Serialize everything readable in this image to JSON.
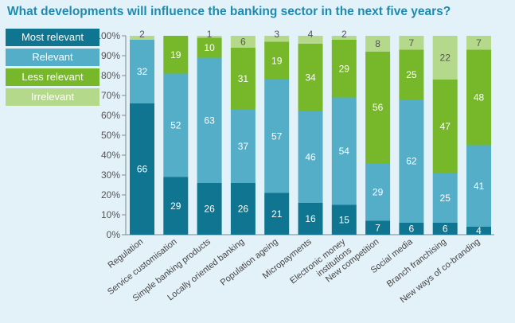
{
  "chart_data": {
    "type": "bar",
    "stacked": true,
    "title": "What developments will influence the banking sector in the next five years?",
    "xlabel": "",
    "ylabel": "",
    "ylim": [
      0,
      100
    ],
    "y_ticks": [
      "0%",
      "10%",
      "20%",
      "30%",
      "40%",
      "50%",
      "60%",
      "70%",
      "80%",
      "90%",
      "100%"
    ],
    "grid": false,
    "legend_position": "left",
    "categories": [
      [
        "Regulation"
      ],
      [
        "Service customisation"
      ],
      [
        "Simple banking products"
      ],
      [
        "Locally oriented banking"
      ],
      [
        "Population ageing"
      ],
      [
        "Micropayments"
      ],
      [
        "Electronic money",
        "institutions"
      ],
      [
        "New competition"
      ],
      [
        "Social media"
      ],
      [
        "Branch franchising"
      ],
      [
        "New ways of co-branding"
      ]
    ],
    "series": [
      {
        "name": "Most relevant",
        "color": "#0f7590",
        "values": [
          66,
          29,
          26,
          26,
          21,
          16,
          15,
          7,
          6,
          6,
          4
        ]
      },
      {
        "name": "Relevant",
        "color": "#55aec7",
        "values": [
          32,
          52,
          63,
          37,
          57,
          46,
          54,
          29,
          62,
          25,
          41
        ]
      },
      {
        "name": "Less relevant",
        "color": "#76b82a",
        "values": [
          0,
          19,
          10,
          31,
          19,
          34,
          29,
          56,
          25,
          47,
          48
        ]
      },
      {
        "name": "Irrelevant",
        "color": "#b5d98a",
        "values": [
          2,
          0,
          1,
          6,
          3,
          4,
          2,
          8,
          7,
          22,
          7
        ]
      }
    ],
    "segment_labels": [
      [
        "66",
        "29",
        "26",
        "26",
        "21",
        "16",
        "15",
        "7",
        "6",
        "6",
        "4"
      ],
      [
        "32",
        "52",
        "63",
        "37",
        "57",
        "46",
        "54",
        "29",
        "62",
        "25",
        "41"
      ],
      [
        "",
        "19",
        "10",
        "31",
        "19",
        "34",
        "29",
        "56",
        "25",
        "47",
        "48"
      ],
      [
        "2",
        "",
        "1",
        "6",
        "3",
        "4",
        "2",
        "8",
        "7",
        "22",
        "7"
      ]
    ]
  },
  "legend": [
    {
      "label": "Most relevant",
      "color": "#0f7590"
    },
    {
      "label": "Relevant",
      "color": "#55aec7"
    },
    {
      "label": "Less relevant",
      "color": "#76b82a"
    },
    {
      "label": "Irrelevant",
      "color": "#b5d98a"
    }
  ]
}
